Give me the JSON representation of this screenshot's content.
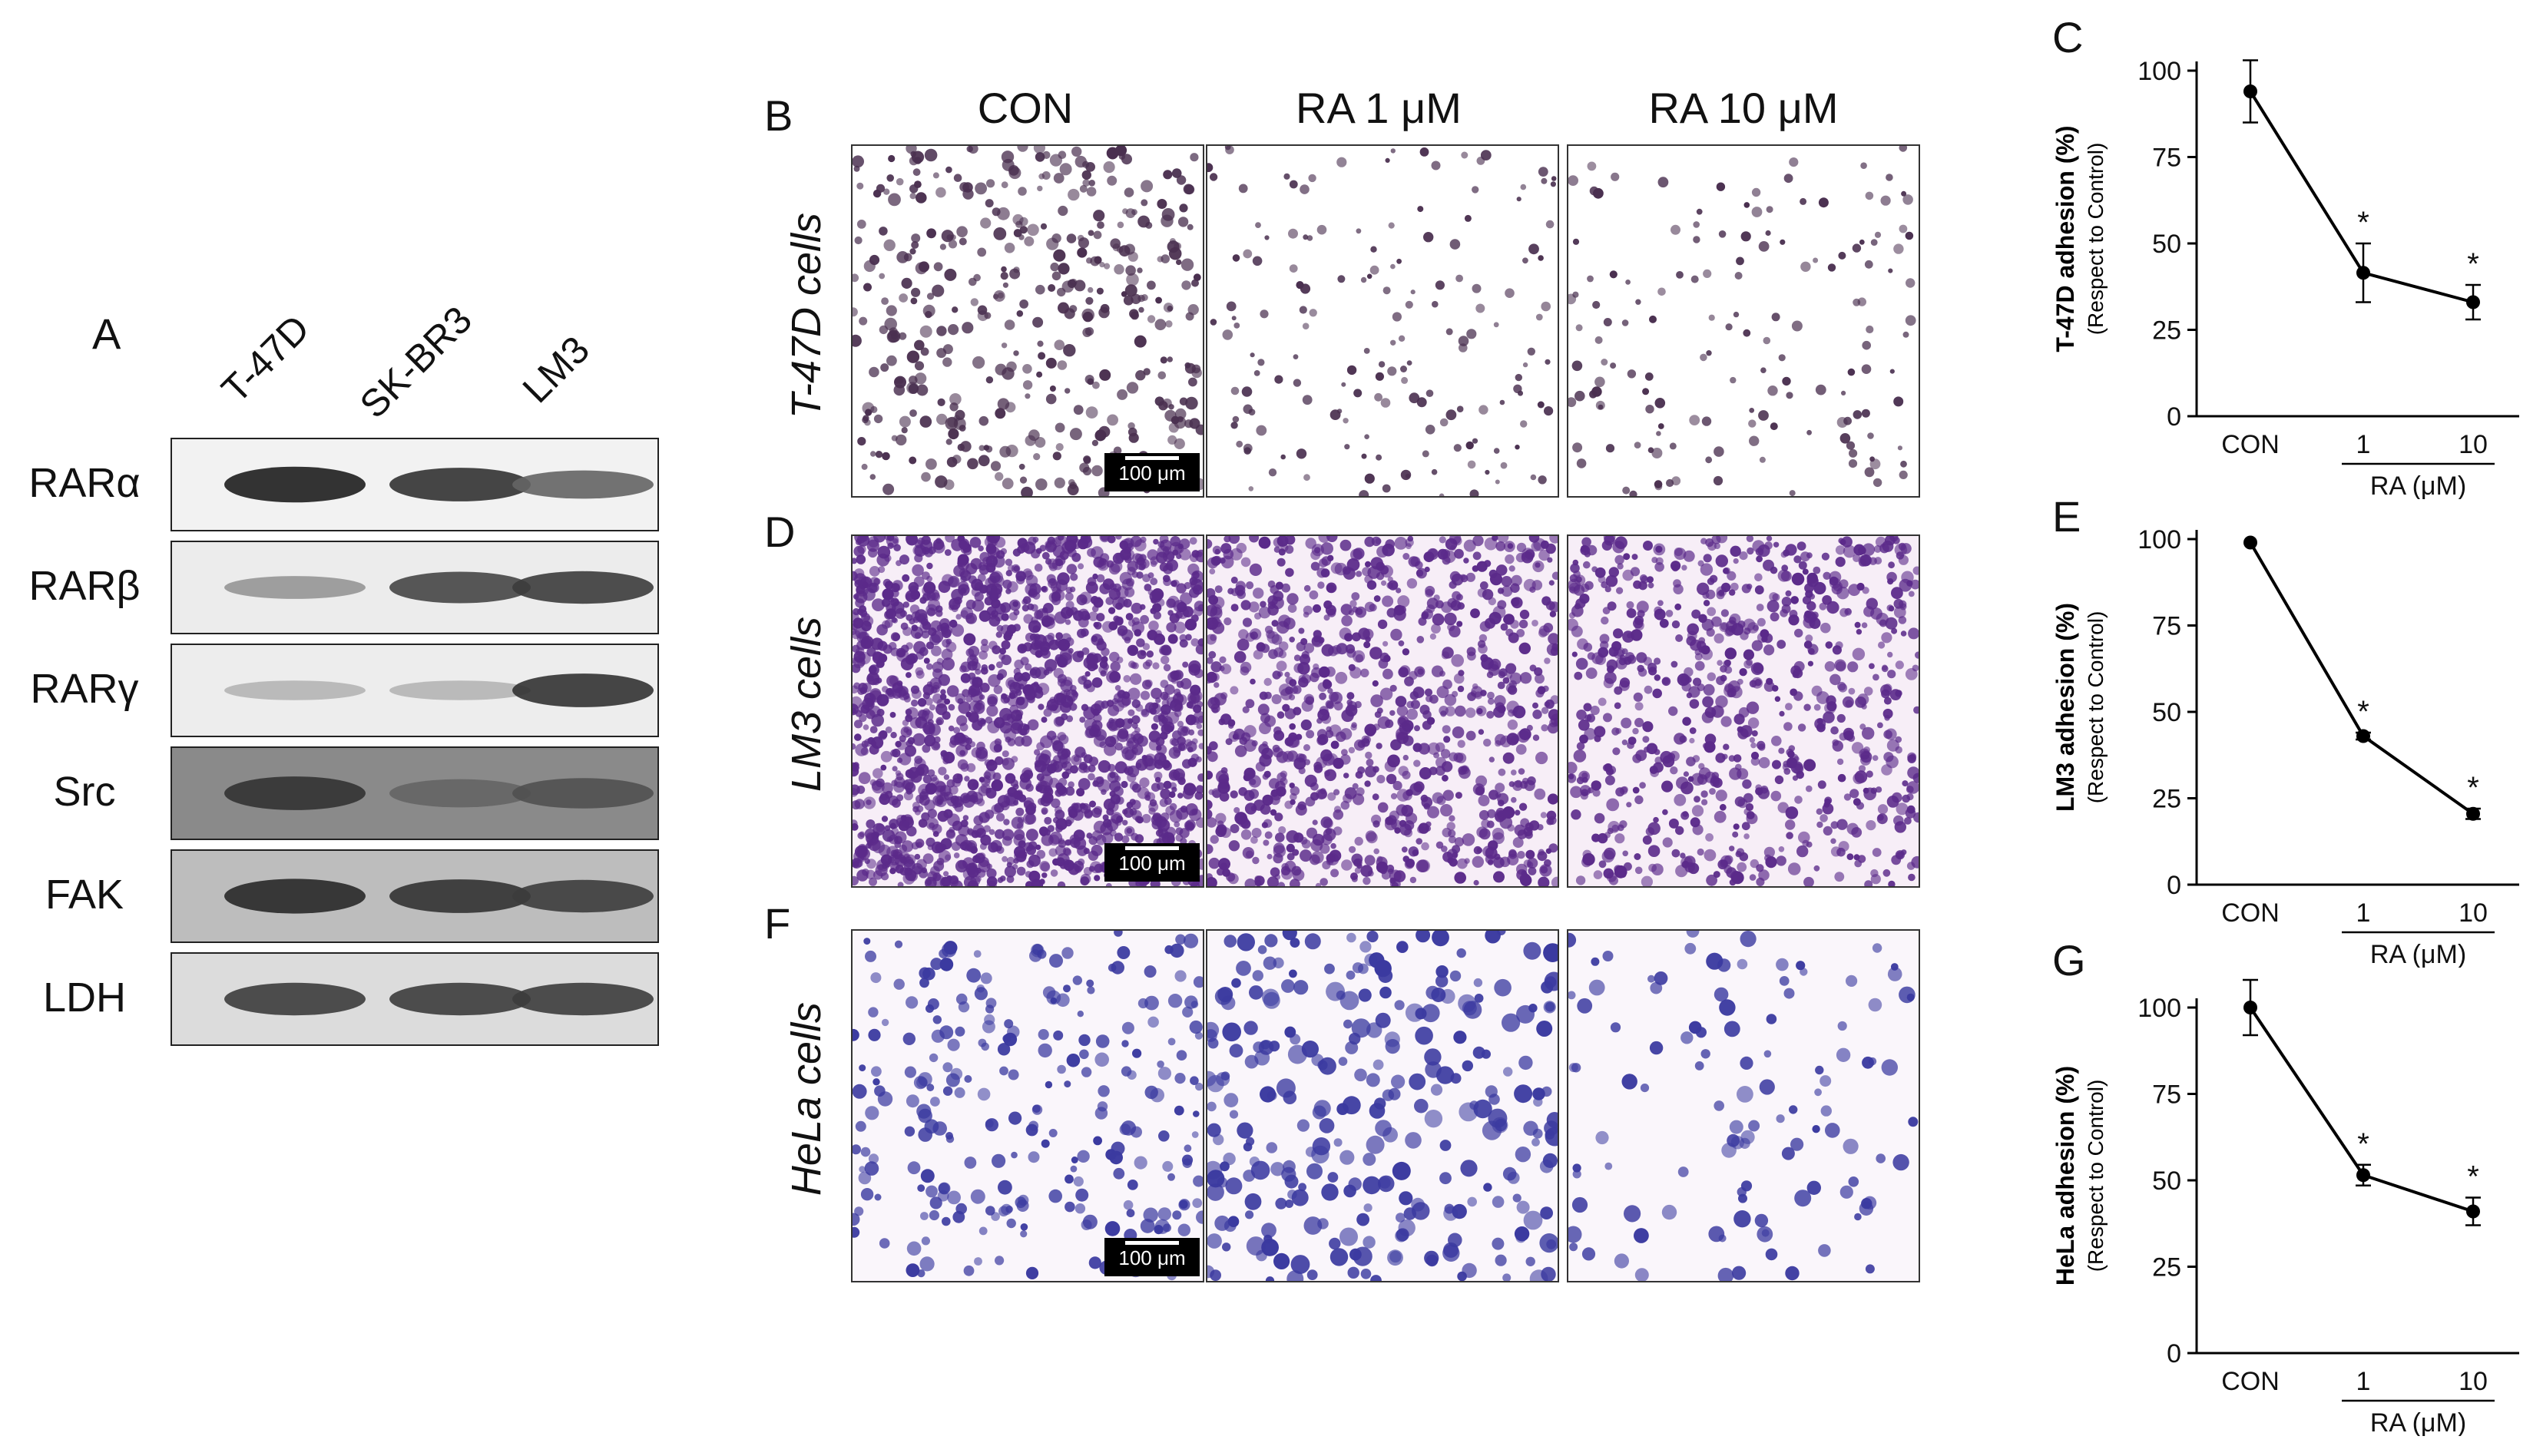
{
  "panel_A": {
    "letter": "A",
    "lanes": [
      "T-47D",
      "SK-BR3",
      "LM3"
    ],
    "bands": [
      {
        "label": "RARα",
        "background": "#f2f2f2",
        "intensity": [
          0.95,
          0.85,
          0.6
        ]
      },
      {
        "label": "RARβ",
        "background": "#ececec",
        "intensity": [
          0.35,
          0.75,
          0.8
        ]
      },
      {
        "label": "RARγ",
        "background": "#ededed",
        "intensity": [
          0.2,
          0.2,
          0.85
        ]
      },
      {
        "label": "Src",
        "background": "#8a8a8a",
        "intensity": [
          0.85,
          0.6,
          0.7
        ]
      },
      {
        "label": "FAK",
        "background": "#bdbdbd",
        "intensity": [
          0.9,
          0.85,
          0.8
        ]
      },
      {
        "label": "LDH",
        "background": "#dcdcdc",
        "intensity": [
          0.8,
          0.8,
          0.8
        ]
      }
    ]
  },
  "micrographs": {
    "columns": [
      "CON",
      "RA 1 μM",
      "RA 10 μM"
    ],
    "scale_bar": "100 μm",
    "rows": [
      {
        "letter": "B",
        "label": "T-47D cells",
        "cell_color": "#4a3050",
        "bg_color": "#ffffff",
        "densities": [
          420,
          160,
          150
        ],
        "sizes": [
          6,
          5,
          5
        ]
      },
      {
        "letter": "D",
        "label": "LM3 cells",
        "cell_color": "#5b2a8a",
        "bg_color": "#f7eef7",
        "densities": [
          1800,
          1000,
          800
        ],
        "sizes": [
          6,
          6,
          6
        ]
      },
      {
        "letter": "F",
        "label": "HeLa cells",
        "cell_color": "#3b3aa0",
        "bg_color": "#faf6fb",
        "densities": [
          260,
          280,
          110
        ],
        "sizes": [
          7,
          9,
          8
        ]
      }
    ]
  },
  "chart_data": [
    {
      "panel": "C",
      "type": "line",
      "ylabel": "T-47D adhesion (%)",
      "ylabel_sub": "(Respect to Control)",
      "categories": [
        "CON",
        "1",
        "10"
      ],
      "xgroup_label": "RA (μM)",
      "values": [
        94,
        41.5,
        33
      ],
      "errors": [
        9,
        8.5,
        5
      ],
      "significance": [
        "",
        "*",
        "*"
      ],
      "yticks": [
        0,
        25,
        50,
        75,
        100
      ],
      "ylim": [
        0,
        100
      ]
    },
    {
      "panel": "E",
      "type": "line",
      "ylabel": "LM3 adhesion (%)",
      "ylabel_sub": "(Respect to Control)",
      "categories": [
        "CON",
        "1",
        "10"
      ],
      "xgroup_label": "RA (μM)",
      "values": [
        99,
        43,
        20.5
      ],
      "errors": [
        0.5,
        1,
        1.5
      ],
      "significance": [
        "",
        "*",
        "*"
      ],
      "yticks": [
        0,
        25,
        50,
        75,
        100
      ],
      "ylim": [
        0,
        100
      ]
    },
    {
      "panel": "G",
      "type": "line",
      "ylabel": "HeLa adhesion (%)",
      "ylabel_sub": "(Respect to Control)",
      "categories": [
        "CON",
        "1",
        "10"
      ],
      "xgroup_label": "RA (μM)",
      "values": [
        100,
        51.5,
        41
      ],
      "errors": [
        8,
        3,
        4
      ],
      "significance": [
        "",
        "*",
        "*"
      ],
      "yticks": [
        0,
        25,
        50,
        75,
        100
      ],
      "ylim": [
        0,
        100
      ]
    }
  ]
}
